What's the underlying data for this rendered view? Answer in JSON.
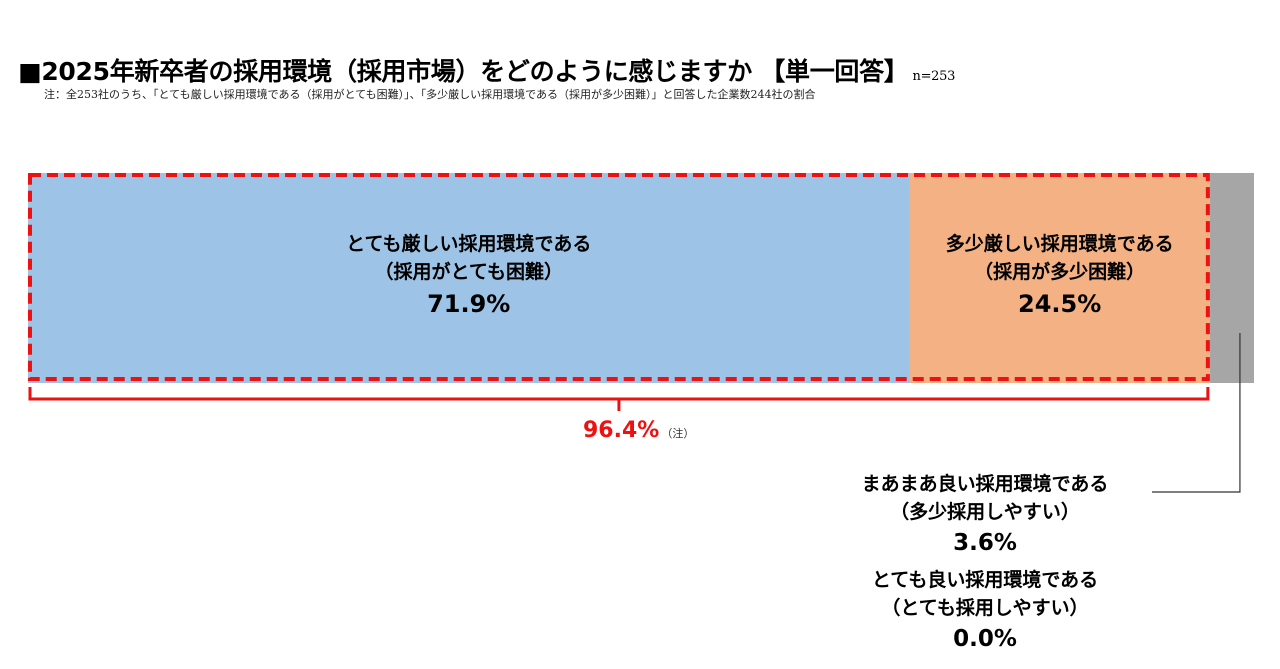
{
  "header": {
    "title": "■2025年新卒者の採用環境（採用市場）をどのように感じますか 【単一回答】",
    "n": "n=253",
    "note": "注：全253社のうち、「とても厳しい採用環境である（採用がとても困難）」、「多少厳しい採用環境である（採用が多少困難）」と回答した企業数244社の割合"
  },
  "chart_data": {
    "type": "bar",
    "orientation": "horizontal",
    "stacked": true,
    "categories": [
      "2025年新卒者の採用環境"
    ],
    "series": [
      {
        "name": "とても厳しい採用環境である（採用がとても困難）",
        "values": [
          71.9
        ],
        "label_line1": "とても厳しい採用環境である",
        "label_line2": "（採用がとても困難）",
        "label_pct": "71.9%",
        "color": "#9dc3e6"
      },
      {
        "name": "多少厳しい採用環境である（採用が多少困難）",
        "values": [
          24.5
        ],
        "label_line1": "多少厳しい採用環境である",
        "label_line2": "（採用が多少困難）",
        "label_pct": "24.5%",
        "color": "#f4b183"
      },
      {
        "name": "まあまあ良い採用環境である（多少採用しやすい）",
        "values": [
          3.6
        ],
        "label_line1": "まあまあ良い採用環境である",
        "label_line2": "（多少採用しやすい）",
        "label_pct": "3.6%",
        "color": "#a6a6a6"
      },
      {
        "name": "とても良い採用環境である（とても採用しやすい）",
        "values": [
          0.0
        ],
        "label_line1": "とても良い採用環境である",
        "label_line2": "（とても採用しやすい）",
        "label_pct": "0.0%",
        "color": "#7f7f7f"
      }
    ],
    "xlim": [
      0,
      100
    ],
    "highlight": {
      "value": "96.4%",
      "suffix": "（注）",
      "color": "#ee1111"
    }
  }
}
